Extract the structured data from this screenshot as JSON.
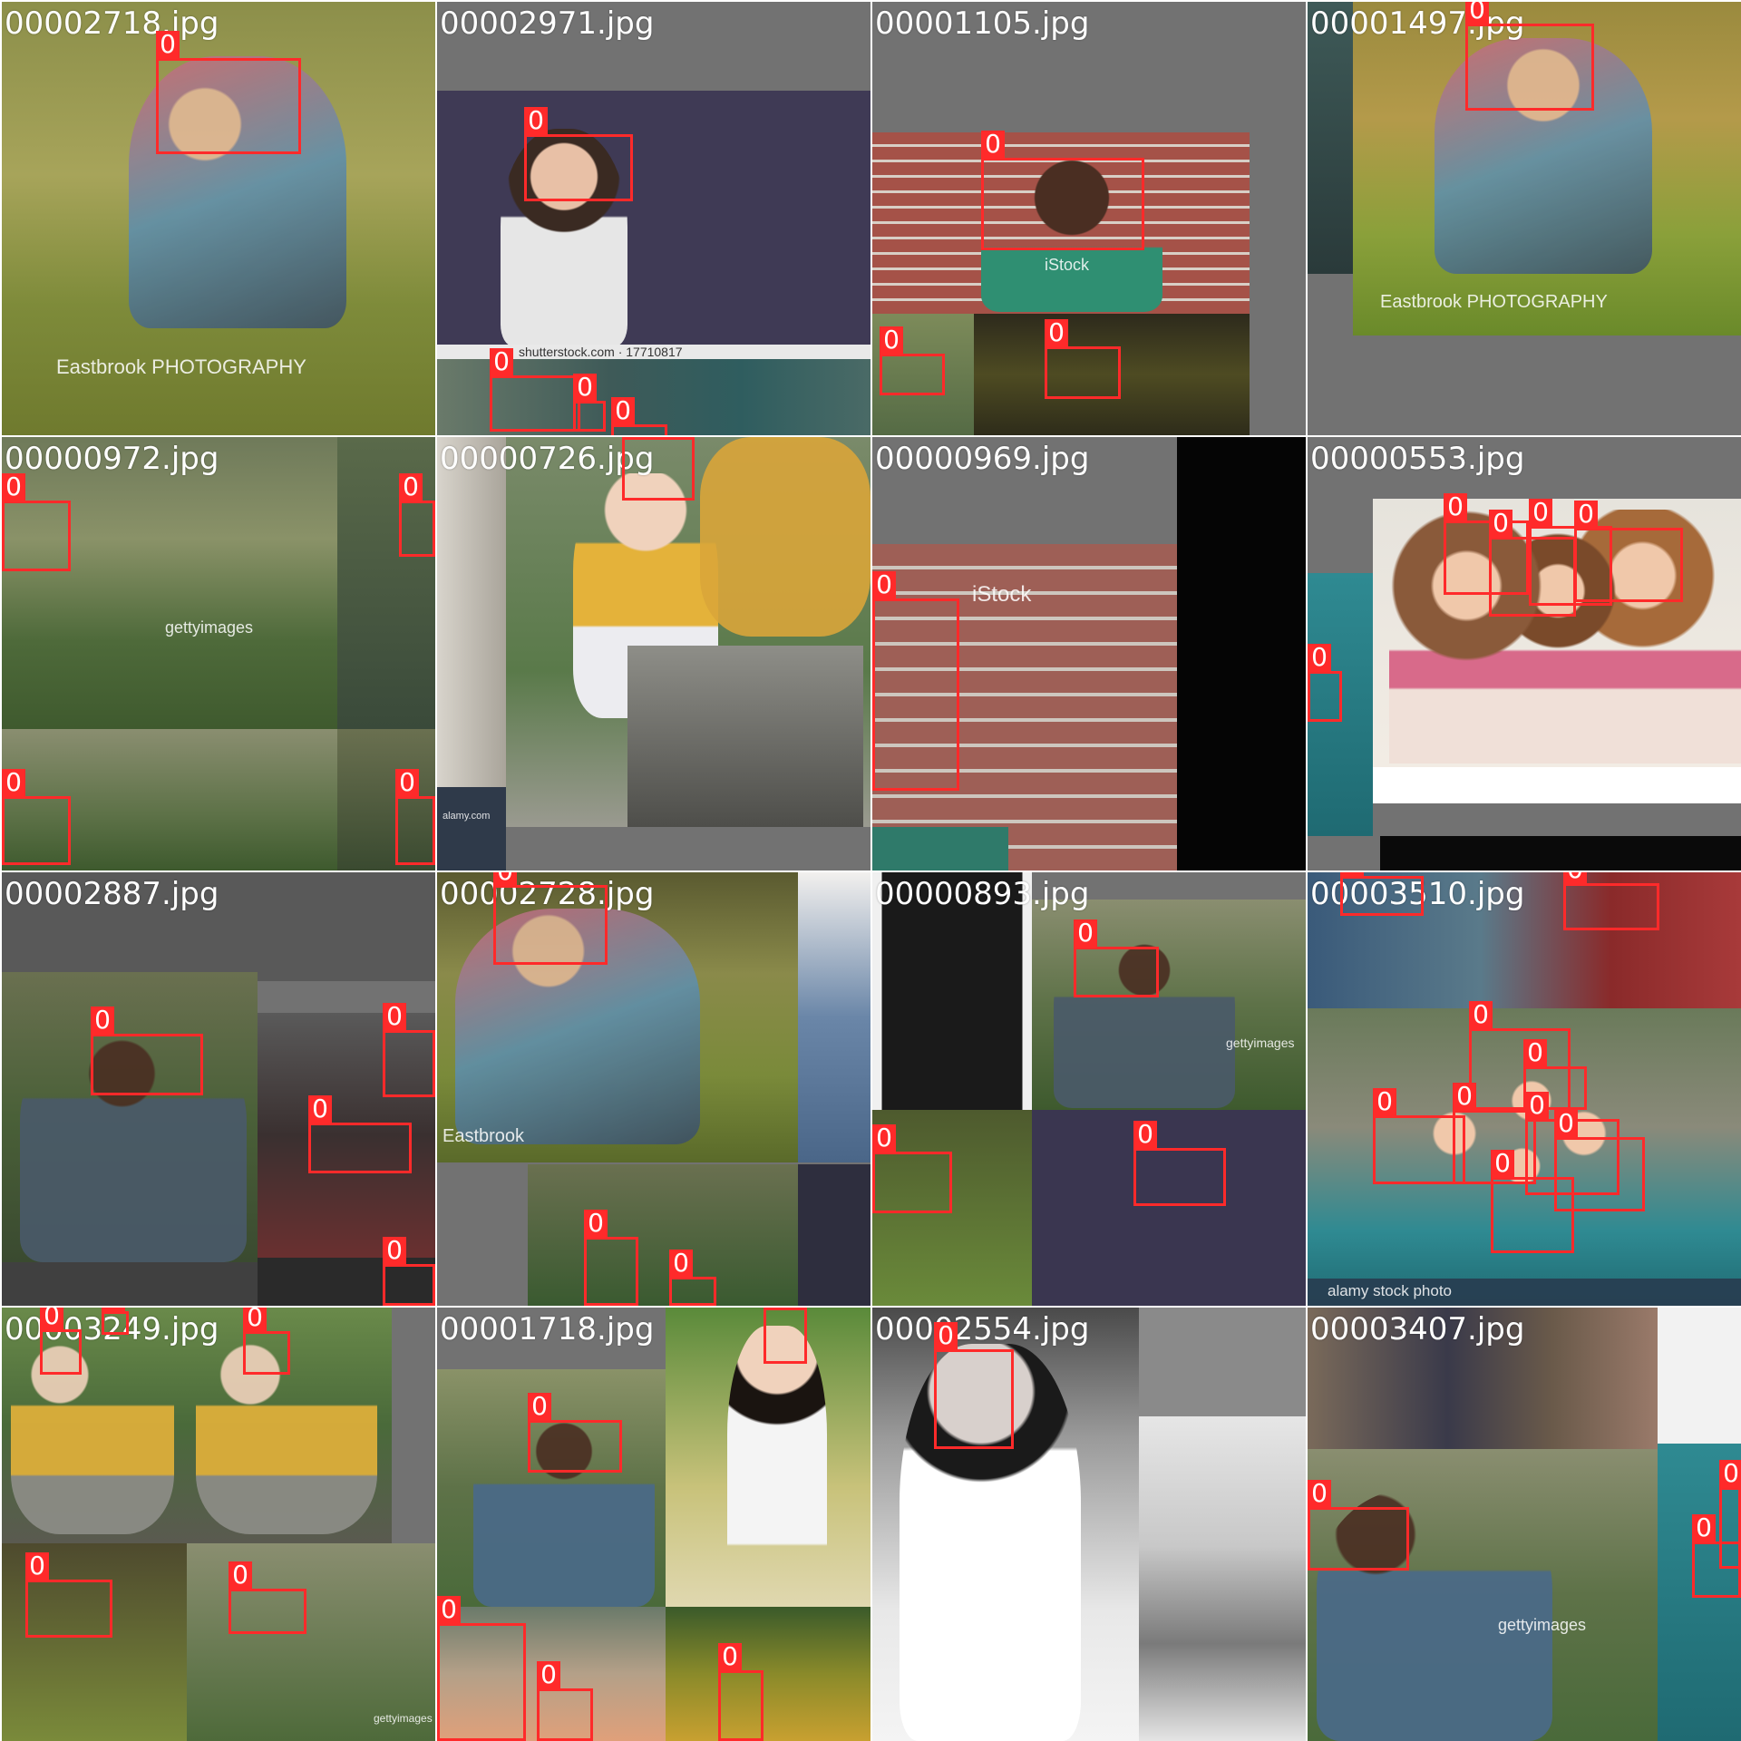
{
  "tiles": [
    {
      "filename": "00002718.jpg",
      "boxes": [
        {
          "label": "0"
        }
      ],
      "watermark": "Eastbrook PHOTOGRAPHY"
    },
    {
      "filename": "00002971.jpg",
      "boxes": [
        {
          "label": "0"
        },
        {
          "label": "0"
        },
        {
          "label": "0"
        },
        {
          "label": "0"
        }
      ],
      "watermark": "shutterstock.com · 17710817"
    },
    {
      "filename": "00001105.jpg",
      "boxes": [
        {
          "label": "0"
        },
        {
          "label": "0"
        },
        {
          "label": "0"
        }
      ],
      "watermark": "iStock"
    },
    {
      "filename": "00001497.jpg",
      "boxes": [
        {
          "label": "0"
        }
      ],
      "watermark": "Eastbrook PHOTOGRAPHY"
    },
    {
      "filename": "00000972.jpg",
      "boxes": [
        {
          "label": "0"
        },
        {
          "label": "0"
        },
        {
          "label": "0"
        },
        {
          "label": "0"
        }
      ],
      "watermark": "gettyimages"
    },
    {
      "filename": "00000726.jpg",
      "boxes": [
        {
          "label": "0"
        }
      ],
      "watermark": "alamy.com"
    },
    {
      "filename": "00000969.jpg",
      "boxes": [
        {
          "label": "0"
        }
      ],
      "watermark": "iStock"
    },
    {
      "filename": "00000553.jpg",
      "boxes": [
        {
          "label": "0"
        },
        {
          "label": "0"
        },
        {
          "label": "0"
        },
        {
          "label": "0"
        },
        {
          "label": "0"
        }
      ],
      "watermark": ""
    },
    {
      "filename": "00002887.jpg",
      "boxes": [
        {
          "label": "0"
        },
        {
          "label": "0"
        },
        {
          "label": "0"
        },
        {
          "label": "0"
        }
      ],
      "watermark": ""
    },
    {
      "filename": "00002728.jpg",
      "boxes": [
        {
          "label": "0"
        },
        {
          "label": "0"
        },
        {
          "label": "0"
        }
      ],
      "watermark": "Eastbrook"
    },
    {
      "filename": "00000893.jpg",
      "boxes": [
        {
          "label": "0"
        },
        {
          "label": "0"
        },
        {
          "label": "0"
        }
      ],
      "watermark": "gettyimages"
    },
    {
      "filename": "00003510.jpg",
      "boxes": [
        {
          "label": "0"
        },
        {
          "label": "0"
        },
        {
          "label": "0"
        },
        {
          "label": "0"
        },
        {
          "label": "0"
        },
        {
          "label": "0"
        },
        {
          "label": "0"
        },
        {
          "label": "0"
        },
        {
          "label": "0"
        }
      ],
      "watermark": "alamy stock photo"
    },
    {
      "filename": "00003249.jpg",
      "boxes": [
        {
          "label": "0"
        },
        {
          "label": "0"
        },
        {
          "label": "0"
        },
        {
          "label": "0"
        },
        {
          "label": "0"
        }
      ],
      "watermark": "gettyimages"
    },
    {
      "filename": "00001718.jpg",
      "boxes": [
        {
          "label": "0"
        },
        {
          "label": "0"
        },
        {
          "label": "0"
        },
        {
          "label": "0"
        },
        {
          "label": "0"
        }
      ],
      "watermark": ""
    },
    {
      "filename": "00002554.jpg",
      "boxes": [
        {
          "label": "0"
        }
      ],
      "watermark": ""
    },
    {
      "filename": "00003407.jpg",
      "boxes": [
        {
          "label": "0"
        },
        {
          "label": "0"
        },
        {
          "label": "0"
        }
      ],
      "watermark": "gettyimages"
    }
  ]
}
